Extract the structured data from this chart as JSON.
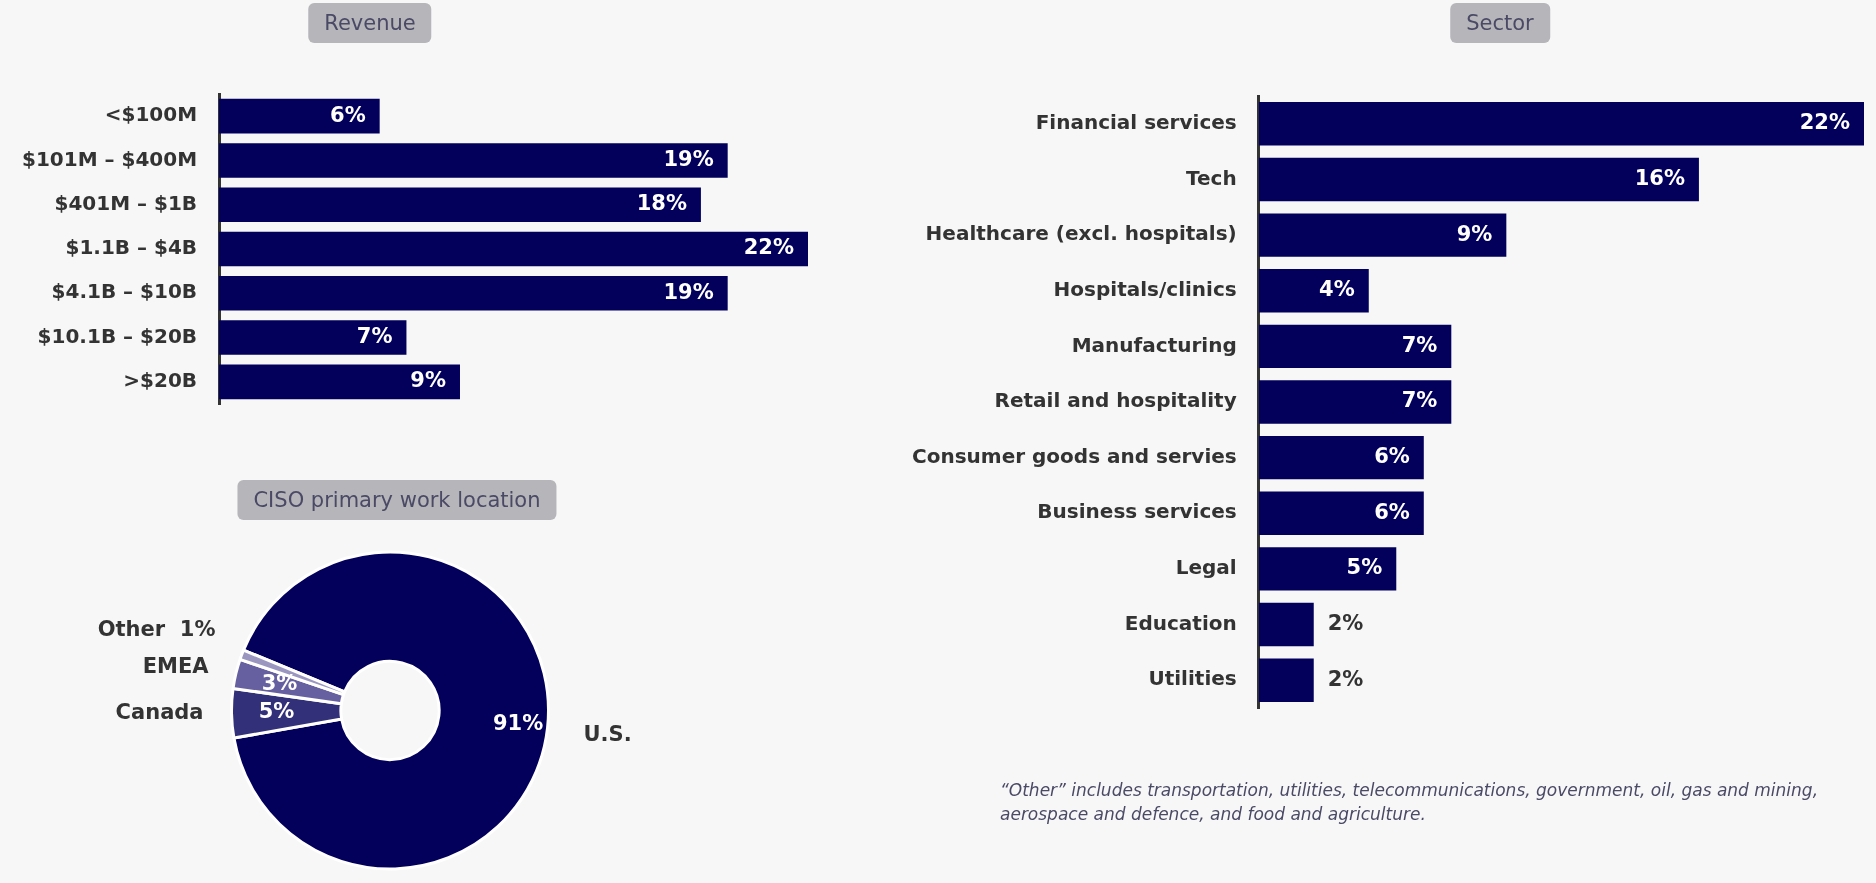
{
  "chart_data": [
    {
      "type": "bar",
      "title": "Revenue",
      "orientation": "horizontal",
      "categories": [
        "<$100M",
        "$101M – $400M",
        "$401M – $1B",
        "$1.1B – $4B",
        "$4.1B – $10B",
        "$10.1B – $20B",
        ">$20B"
      ],
      "values": [
        6,
        19,
        18,
        22,
        19,
        7,
        9
      ],
      "color": "#03005c",
      "value_labels": [
        "6%",
        "19%",
        "18%",
        "22%",
        "19%",
        "7%",
        "9%"
      ],
      "grid": false,
      "legend": false,
      "tick_labels": "y"
    },
    {
      "type": "bar",
      "title": "Sector",
      "orientation": "horizontal",
      "categories": [
        "Financial services",
        "Tech",
        "Healthcare (excl. hospitals)",
        "Hospitals/clinics",
        "Manufacturing",
        "Retail and hospitality",
        "Consumer goods and servies",
        "Business services",
        "Legal",
        "Education",
        "Utilities"
      ],
      "values": [
        22,
        16,
        9,
        4,
        7,
        7,
        6,
        6,
        5,
        2,
        2
      ],
      "color": "#03005c",
      "value_labels": [
        "22%",
        "16%",
        "9%",
        "4%",
        "7%",
        "7%",
        "6%",
        "6%",
        "5%",
        "2%",
        "2%"
      ],
      "grid": false,
      "legend": false,
      "tick_labels": "y",
      "annotations": [
        "“Other” includes transportation, utilities, telecommunications, government, oil, gas and mining, aerospace and defence, and food and agriculture."
      ]
    },
    {
      "type": "donut",
      "title": "CISO primary work location",
      "categories": [
        "U.S.",
        "Canada",
        "EMEA",
        "Other"
      ],
      "values": [
        91,
        5,
        3,
        1
      ],
      "colors": [
        "#03005c",
        "#33307a",
        "#6660a0",
        "#9a96c0"
      ],
      "value_labels": [
        "91%",
        "5%",
        "3%",
        "1%"
      ],
      "legend": false
    }
  ]
}
